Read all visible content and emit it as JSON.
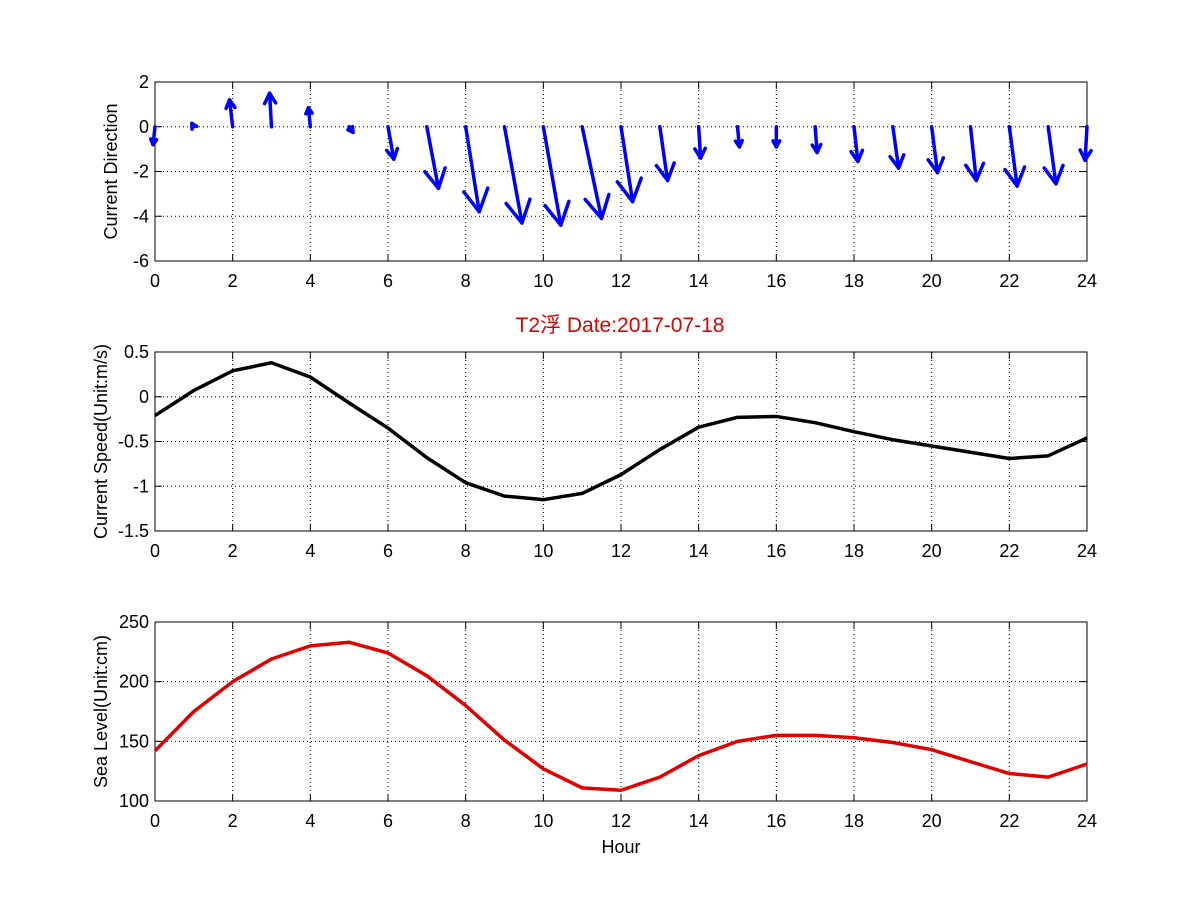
{
  "figure_title": "T2浮 Date:2017-07-18",
  "title_color": "#e00000",
  "chart_data": [
    {
      "type": "quiver",
      "title": "",
      "xlabel": "",
      "ylabel": "Current Direction",
      "xlim": [
        0,
        24
      ],
      "ylim": [
        -6,
        2
      ],
      "xticks": [
        "0",
        "2",
        "4",
        "6",
        "8",
        "10",
        "12",
        "14",
        "16",
        "18",
        "20",
        "22",
        "24"
      ],
      "yticks": [
        "-6",
        "-4",
        "-2",
        "0",
        "2"
      ],
      "grid": true,
      "color": "#0000ff",
      "x": [
        0,
        1,
        2,
        3,
        4,
        5,
        6,
        7,
        8,
        9,
        10,
        11,
        12,
        13,
        14,
        15,
        16,
        17,
        18,
        19,
        20,
        21,
        22,
        23,
        24
      ],
      "u": [
        -0.05,
        -0.05,
        -0.08,
        -0.05,
        -0.05,
        0.1,
        0.15,
        0.3,
        0.35,
        0.45,
        0.45,
        0.5,
        0.3,
        0.2,
        0.05,
        0.05,
        0.0,
        0.05,
        0.1,
        0.15,
        0.15,
        0.15,
        0.2,
        0.2,
        -0.05
      ],
      "v": [
        -0.8,
        0.15,
        1.2,
        1.5,
        0.85,
        -0.25,
        -1.45,
        -2.75,
        -3.8,
        -4.3,
        -4.4,
        -4.1,
        -3.35,
        -2.4,
        -1.4,
        -0.9,
        -0.9,
        -1.15,
        -1.55,
        -1.85,
        -2.05,
        -2.4,
        -2.65,
        -2.55,
        -1.5
      ]
    },
    {
      "type": "line",
      "title": "",
      "xlabel": "",
      "ylabel": "Current Speed(Unit:m/s)",
      "xlim": [
        0,
        24
      ],
      "ylim": [
        -1.5,
        0.5
      ],
      "xticks": [
        "0",
        "2",
        "4",
        "6",
        "8",
        "10",
        "12",
        "14",
        "16",
        "18",
        "20",
        "22",
        "24"
      ],
      "yticks": [
        "-1.5",
        "-1",
        "-0.5",
        "0",
        "0.5"
      ],
      "grid": true,
      "color": "#000000",
      "x": [
        0,
        1,
        2,
        3,
        4,
        5,
        6,
        7,
        8,
        9,
        10,
        11,
        12,
        13,
        14,
        15,
        16,
        17,
        18,
        19,
        20,
        21,
        22,
        23,
        24
      ],
      "y": [
        -0.21,
        0.07,
        0.29,
        0.38,
        0.22,
        -0.07,
        -0.35,
        -0.68,
        -0.96,
        -1.11,
        -1.15,
        -1.08,
        -0.87,
        -0.59,
        -0.34,
        -0.23,
        -0.22,
        -0.29,
        -0.39,
        -0.48,
        -0.55,
        -0.62,
        -0.69,
        -0.66,
        -0.46
      ]
    },
    {
      "type": "line",
      "title": "",
      "xlabel": "Hour",
      "ylabel": "Sea Level(Unit:cm)",
      "xlim": [
        0,
        24
      ],
      "ylim": [
        100,
        250
      ],
      "xticks": [
        "0",
        "2",
        "4",
        "6",
        "8",
        "10",
        "12",
        "14",
        "16",
        "18",
        "20",
        "22",
        "24"
      ],
      "yticks": [
        "100",
        "150",
        "200",
        "250"
      ],
      "grid": true,
      "color": "#e00000",
      "x": [
        0,
        1,
        2,
        3,
        4,
        5,
        6,
        7,
        8,
        9,
        10,
        11,
        12,
        13,
        14,
        15,
        16,
        17,
        18,
        19,
        20,
        21,
        22,
        23,
        24
      ],
      "y": [
        142,
        175,
        200,
        219,
        230,
        233,
        224,
        205,
        180,
        151,
        127,
        111,
        109,
        120,
        138,
        150,
        155,
        155,
        153,
        149,
        143,
        133,
        123,
        120,
        131
      ]
    }
  ]
}
